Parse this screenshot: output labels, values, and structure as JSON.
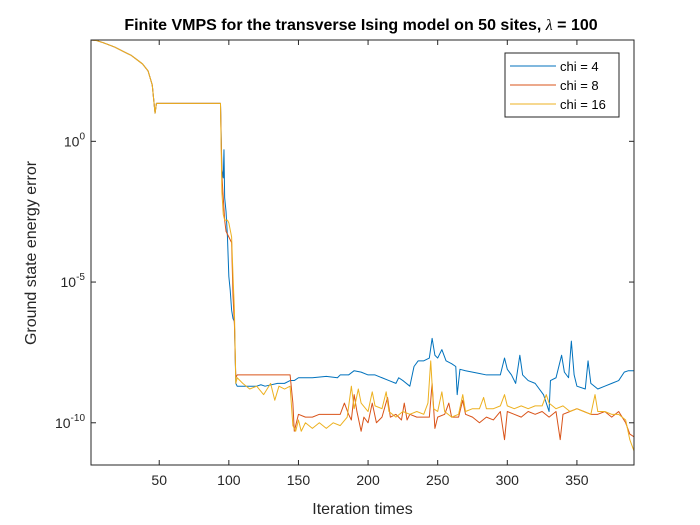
{
  "chart_data": {
    "type": "line",
    "title_prefix": "Finite VMPS for the transverse Ising model on 50 sites, ",
    "title_symbol": "λ",
    "title_suffix": " = 100",
    "xlabel": "Iteration times",
    "ylabel": "Ground state energy error",
    "xlim": [
      1,
      391
    ],
    "ylim_log10": [
      -11.5,
      3.6
    ],
    "yscale": "log",
    "grid": false,
    "legend_placement": "top-right",
    "x_ticks": [
      50,
      100,
      150,
      200,
      250,
      300,
      350
    ],
    "y_ticks": [
      {
        "base": "10",
        "exp": "0",
        "log10": 0
      },
      {
        "base": "10",
        "exp": "-5",
        "log10": -5
      },
      {
        "base": "10",
        "exp": "-10",
        "log10": -10
      }
    ],
    "series": [
      {
        "name": "chi = 4",
        "color": "#0072BD",
        "points": [
          [
            1,
            3.6
          ],
          [
            5,
            3.58
          ],
          [
            10,
            3.5
          ],
          [
            18,
            3.35
          ],
          [
            24,
            3.2
          ],
          [
            30,
            3.05
          ],
          [
            34,
            2.9
          ],
          [
            38,
            2.75
          ],
          [
            42,
            2.5
          ],
          [
            45,
            2.0
          ],
          [
            47,
            1.0
          ],
          [
            48,
            1.35
          ],
          [
            50,
            1.35
          ],
          [
            70,
            1.35
          ],
          [
            90,
            1.35
          ],
          [
            94,
            1.35
          ],
          [
            95,
            -1.0
          ],
          [
            96,
            -1.3
          ],
          [
            96.5,
            -0.3
          ],
          [
            97,
            -2.0
          ],
          [
            98,
            -2.5
          ],
          [
            99,
            -3.4
          ],
          [
            100,
            -4.8
          ],
          [
            101,
            -5.3
          ],
          [
            102,
            -6.0
          ],
          [
            103,
            -6.3
          ],
          [
            104,
            -6.4
          ],
          [
            105,
            -8.6
          ],
          [
            106,
            -8.7
          ],
          [
            110,
            -8.7
          ],
          [
            120,
            -8.7
          ],
          [
            123,
            -8.65
          ],
          [
            126,
            -8.7
          ],
          [
            135,
            -8.6
          ],
          [
            140,
            -8.6
          ],
          [
            144,
            -8.5
          ],
          [
            147,
            -8.5
          ],
          [
            150,
            -8.4
          ],
          [
            160,
            -8.4
          ],
          [
            170,
            -8.35
          ],
          [
            178,
            -8.4
          ],
          [
            180,
            -8.3
          ],
          [
            186,
            -8.3
          ],
          [
            190,
            -8.15
          ],
          [
            195,
            -8.2
          ],
          [
            200,
            -8.3
          ],
          [
            205,
            -8.3
          ],
          [
            210,
            -8.4
          ],
          [
            215,
            -8.5
          ],
          [
            220,
            -8.6
          ],
          [
            222,
            -8.4
          ],
          [
            225,
            -8.5
          ],
          [
            230,
            -8.7
          ],
          [
            233,
            -8.0
          ],
          [
            236,
            -7.8
          ],
          [
            240,
            -7.8
          ],
          [
            244,
            -7.7
          ],
          [
            246,
            -7.0
          ],
          [
            248,
            -7.6
          ],
          [
            250,
            -7.7
          ],
          [
            253,
            -7.4
          ],
          [
            256,
            -7.8
          ],
          [
            260,
            -7.9
          ],
          [
            263,
            -8.0
          ],
          [
            264,
            -9.0
          ],
          [
            266,
            -8.1
          ],
          [
            270,
            -8.15
          ],
          [
            275,
            -8.2
          ],
          [
            280,
            -8.25
          ],
          [
            285,
            -8.3
          ],
          [
            290,
            -8.3
          ],
          [
            295,
            -8.3
          ],
          [
            298,
            -7.7
          ],
          [
            300,
            -8.1
          ],
          [
            303,
            -8.3
          ],
          [
            306,
            -8.6
          ],
          [
            309,
            -7.6
          ],
          [
            311,
            -8.3
          ],
          [
            315,
            -8.5
          ],
          [
            320,
            -8.6
          ],
          [
            326,
            -9.0
          ],
          [
            330,
            -9.6
          ],
          [
            331,
            -8.5
          ],
          [
            335,
            -8.4
          ],
          [
            339,
            -7.6
          ],
          [
            341,
            -8.2
          ],
          [
            344,
            -8.4
          ],
          [
            346,
            -7.1
          ],
          [
            348,
            -8.3
          ],
          [
            350,
            -8.7
          ],
          [
            356,
            -8.8
          ],
          [
            358,
            -7.8
          ],
          [
            360,
            -8.6
          ],
          [
            365,
            -8.8
          ],
          [
            370,
            -8.7
          ],
          [
            375,
            -8.6
          ],
          [
            380,
            -8.5
          ],
          [
            384,
            -8.2
          ],
          [
            387,
            -8.15
          ],
          [
            391,
            -8.15
          ]
        ]
      },
      {
        "name": "chi = 8",
        "color": "#D95319",
        "points": [
          [
            1,
            3.6
          ],
          [
            5,
            3.58
          ],
          [
            10,
            3.5
          ],
          [
            18,
            3.35
          ],
          [
            24,
            3.2
          ],
          [
            30,
            3.05
          ],
          [
            34,
            2.9
          ],
          [
            38,
            2.75
          ],
          [
            42,
            2.5
          ],
          [
            45,
            2.0
          ],
          [
            47,
            1.0
          ],
          [
            48,
            1.35
          ],
          [
            50,
            1.35
          ],
          [
            70,
            1.35
          ],
          [
            90,
            1.35
          ],
          [
            94,
            1.35
          ],
          [
            95,
            -1.2
          ],
          [
            96,
            -2.0
          ],
          [
            97,
            -2.8
          ],
          [
            98,
            -3.2
          ],
          [
            100,
            -3.4
          ],
          [
            102,
            -3.6
          ],
          [
            103,
            -5.5
          ],
          [
            104,
            -6.5
          ],
          [
            105,
            -8.4
          ],
          [
            106,
            -8.3
          ],
          [
            110,
            -8.3
          ],
          [
            120,
            -8.3
          ],
          [
            130,
            -8.3
          ],
          [
            140,
            -8.3
          ],
          [
            144,
            -8.3
          ],
          [
            146,
            -9.3
          ],
          [
            147,
            -10.3
          ],
          [
            150,
            -9.7
          ],
          [
            155,
            -9.8
          ],
          [
            160,
            -9.8
          ],
          [
            165,
            -9.7
          ],
          [
            170,
            -9.7
          ],
          [
            175,
            -9.7
          ],
          [
            180,
            -9.7
          ],
          [
            183,
            -9.3
          ],
          [
            186,
            -9.7
          ],
          [
            188,
            -9.9
          ],
          [
            190,
            -9.0
          ],
          [
            192,
            -9.6
          ],
          [
            195,
            -10.3
          ],
          [
            197,
            -9.8
          ],
          [
            200,
            -10.0
          ],
          [
            203,
            -9.3
          ],
          [
            206,
            -10.0
          ],
          [
            210,
            -9.8
          ],
          [
            214,
            -9.1
          ],
          [
            216,
            -9.8
          ],
          [
            220,
            -9.7
          ],
          [
            224,
            -9.9
          ],
          [
            226,
            -9.3
          ],
          [
            228,
            -9.9
          ],
          [
            230,
            -9.7
          ],
          [
            235,
            -9.8
          ],
          [
            240,
            -9.8
          ],
          [
            244,
            -9.8
          ],
          [
            246,
            -8.6
          ],
          [
            248,
            -10.2
          ],
          [
            250,
            -9.8
          ],
          [
            255,
            -9.7
          ],
          [
            258,
            -9.3
          ],
          [
            260,
            -9.8
          ],
          [
            265,
            -9.8
          ],
          [
            268,
            -9.2
          ],
          [
            270,
            -9.7
          ],
          [
            275,
            -9.8
          ],
          [
            280,
            -10.0
          ],
          [
            285,
            -9.8
          ],
          [
            290,
            -9.9
          ],
          [
            295,
            -9.6
          ],
          [
            298,
            -10.6
          ],
          [
            300,
            -9.6
          ],
          [
            305,
            -9.7
          ],
          [
            310,
            -9.8
          ],
          [
            315,
            -9.6
          ],
          [
            320,
            -9.7
          ],
          [
            325,
            -9.6
          ],
          [
            330,
            -9.8
          ],
          [
            335,
            -9.6
          ],
          [
            338,
            -10.6
          ],
          [
            340,
            -9.7
          ],
          [
            345,
            -9.6
          ],
          [
            350,
            -9.5
          ],
          [
            355,
            -9.6
          ],
          [
            360,
            -9.7
          ],
          [
            365,
            -9.7
          ],
          [
            370,
            -9.6
          ],
          [
            375,
            -9.8
          ],
          [
            380,
            -9.6
          ],
          [
            385,
            -10.0
          ],
          [
            388,
            -10.4
          ],
          [
            391,
            -10.5
          ]
        ]
      },
      {
        "name": "chi = 16",
        "color": "#EDB120",
        "points": [
          [
            1,
            3.6
          ],
          [
            5,
            3.58
          ],
          [
            10,
            3.5
          ],
          [
            18,
            3.35
          ],
          [
            24,
            3.2
          ],
          [
            30,
            3.05
          ],
          [
            34,
            2.9
          ],
          [
            38,
            2.75
          ],
          [
            42,
            2.5
          ],
          [
            45,
            2.0
          ],
          [
            47,
            1.0
          ],
          [
            48,
            1.35
          ],
          [
            50,
            1.35
          ],
          [
            70,
            1.35
          ],
          [
            90,
            1.35
          ],
          [
            94,
            1.35
          ],
          [
            95,
            -1.8
          ],
          [
            96,
            -2.6
          ],
          [
            97,
            -2.8
          ],
          [
            99,
            -2.8
          ],
          [
            100,
            -2.9
          ],
          [
            102,
            -3.4
          ],
          [
            103,
            -4.8
          ],
          [
            104,
            -6.0
          ],
          [
            105,
            -8.6
          ],
          [
            106,
            -8.4
          ],
          [
            110,
            -8.6
          ],
          [
            115,
            -8.8
          ],
          [
            120,
            -8.7
          ],
          [
            125,
            -9.0
          ],
          [
            130,
            -8.6
          ],
          [
            133,
            -9.2
          ],
          [
            136,
            -8.7
          ],
          [
            140,
            -8.8
          ],
          [
            144,
            -8.7
          ],
          [
            146,
            -10.1
          ],
          [
            148,
            -10.3
          ],
          [
            150,
            -9.9
          ],
          [
            152,
            -10.3
          ],
          [
            155,
            -10.0
          ],
          [
            160,
            -10.2
          ],
          [
            165,
            -10.0
          ],
          [
            170,
            -10.2
          ],
          [
            175,
            -10.0
          ],
          [
            180,
            -10.1
          ],
          [
            185,
            -9.8
          ],
          [
            188,
            -8.7
          ],
          [
            190,
            -9.5
          ],
          [
            193,
            -8.8
          ],
          [
            195,
            -9.3
          ],
          [
            200,
            -9.6
          ],
          [
            203,
            -8.9
          ],
          [
            205,
            -9.4
          ],
          [
            210,
            -9.5
          ],
          [
            213,
            -8.9
          ],
          [
            215,
            -9.6
          ],
          [
            220,
            -9.8
          ],
          [
            225,
            -9.6
          ],
          [
            230,
            -9.7
          ],
          [
            235,
            -9.6
          ],
          [
            240,
            -9.7
          ],
          [
            243,
            -9.3
          ],
          [
            245,
            -7.8
          ],
          [
            247,
            -9.5
          ],
          [
            250,
            -9.6
          ],
          [
            253,
            -8.9
          ],
          [
            255,
            -9.6
          ],
          [
            260,
            -9.8
          ],
          [
            265,
            -9.7
          ],
          [
            268,
            -9.0
          ],
          [
            270,
            -9.6
          ],
          [
            275,
            -9.5
          ],
          [
            280,
            -9.5
          ],
          [
            283,
            -9.1
          ],
          [
            285,
            -9.5
          ],
          [
            290,
            -9.5
          ],
          [
            295,
            -9.4
          ],
          [
            298,
            -9.0
          ],
          [
            300,
            -9.4
          ],
          [
            305,
            -9.5
          ],
          [
            310,
            -9.4
          ],
          [
            315,
            -9.5
          ],
          [
            320,
            -9.4
          ],
          [
            325,
            -9.4
          ],
          [
            328,
            -9.0
          ],
          [
            330,
            -9.3
          ],
          [
            335,
            -9.5
          ],
          [
            340,
            -9.4
          ],
          [
            345,
            -9.6
          ],
          [
            350,
            -9.5
          ],
          [
            355,
            -9.6
          ],
          [
            360,
            -9.7
          ],
          [
            363,
            -9.0
          ],
          [
            365,
            -9.6
          ],
          [
            370,
            -9.6
          ],
          [
            375,
            -9.7
          ],
          [
            380,
            -9.7
          ],
          [
            385,
            -9.9
          ],
          [
            388,
            -10.6
          ],
          [
            391,
            -11.0
          ]
        ]
      }
    ]
  }
}
